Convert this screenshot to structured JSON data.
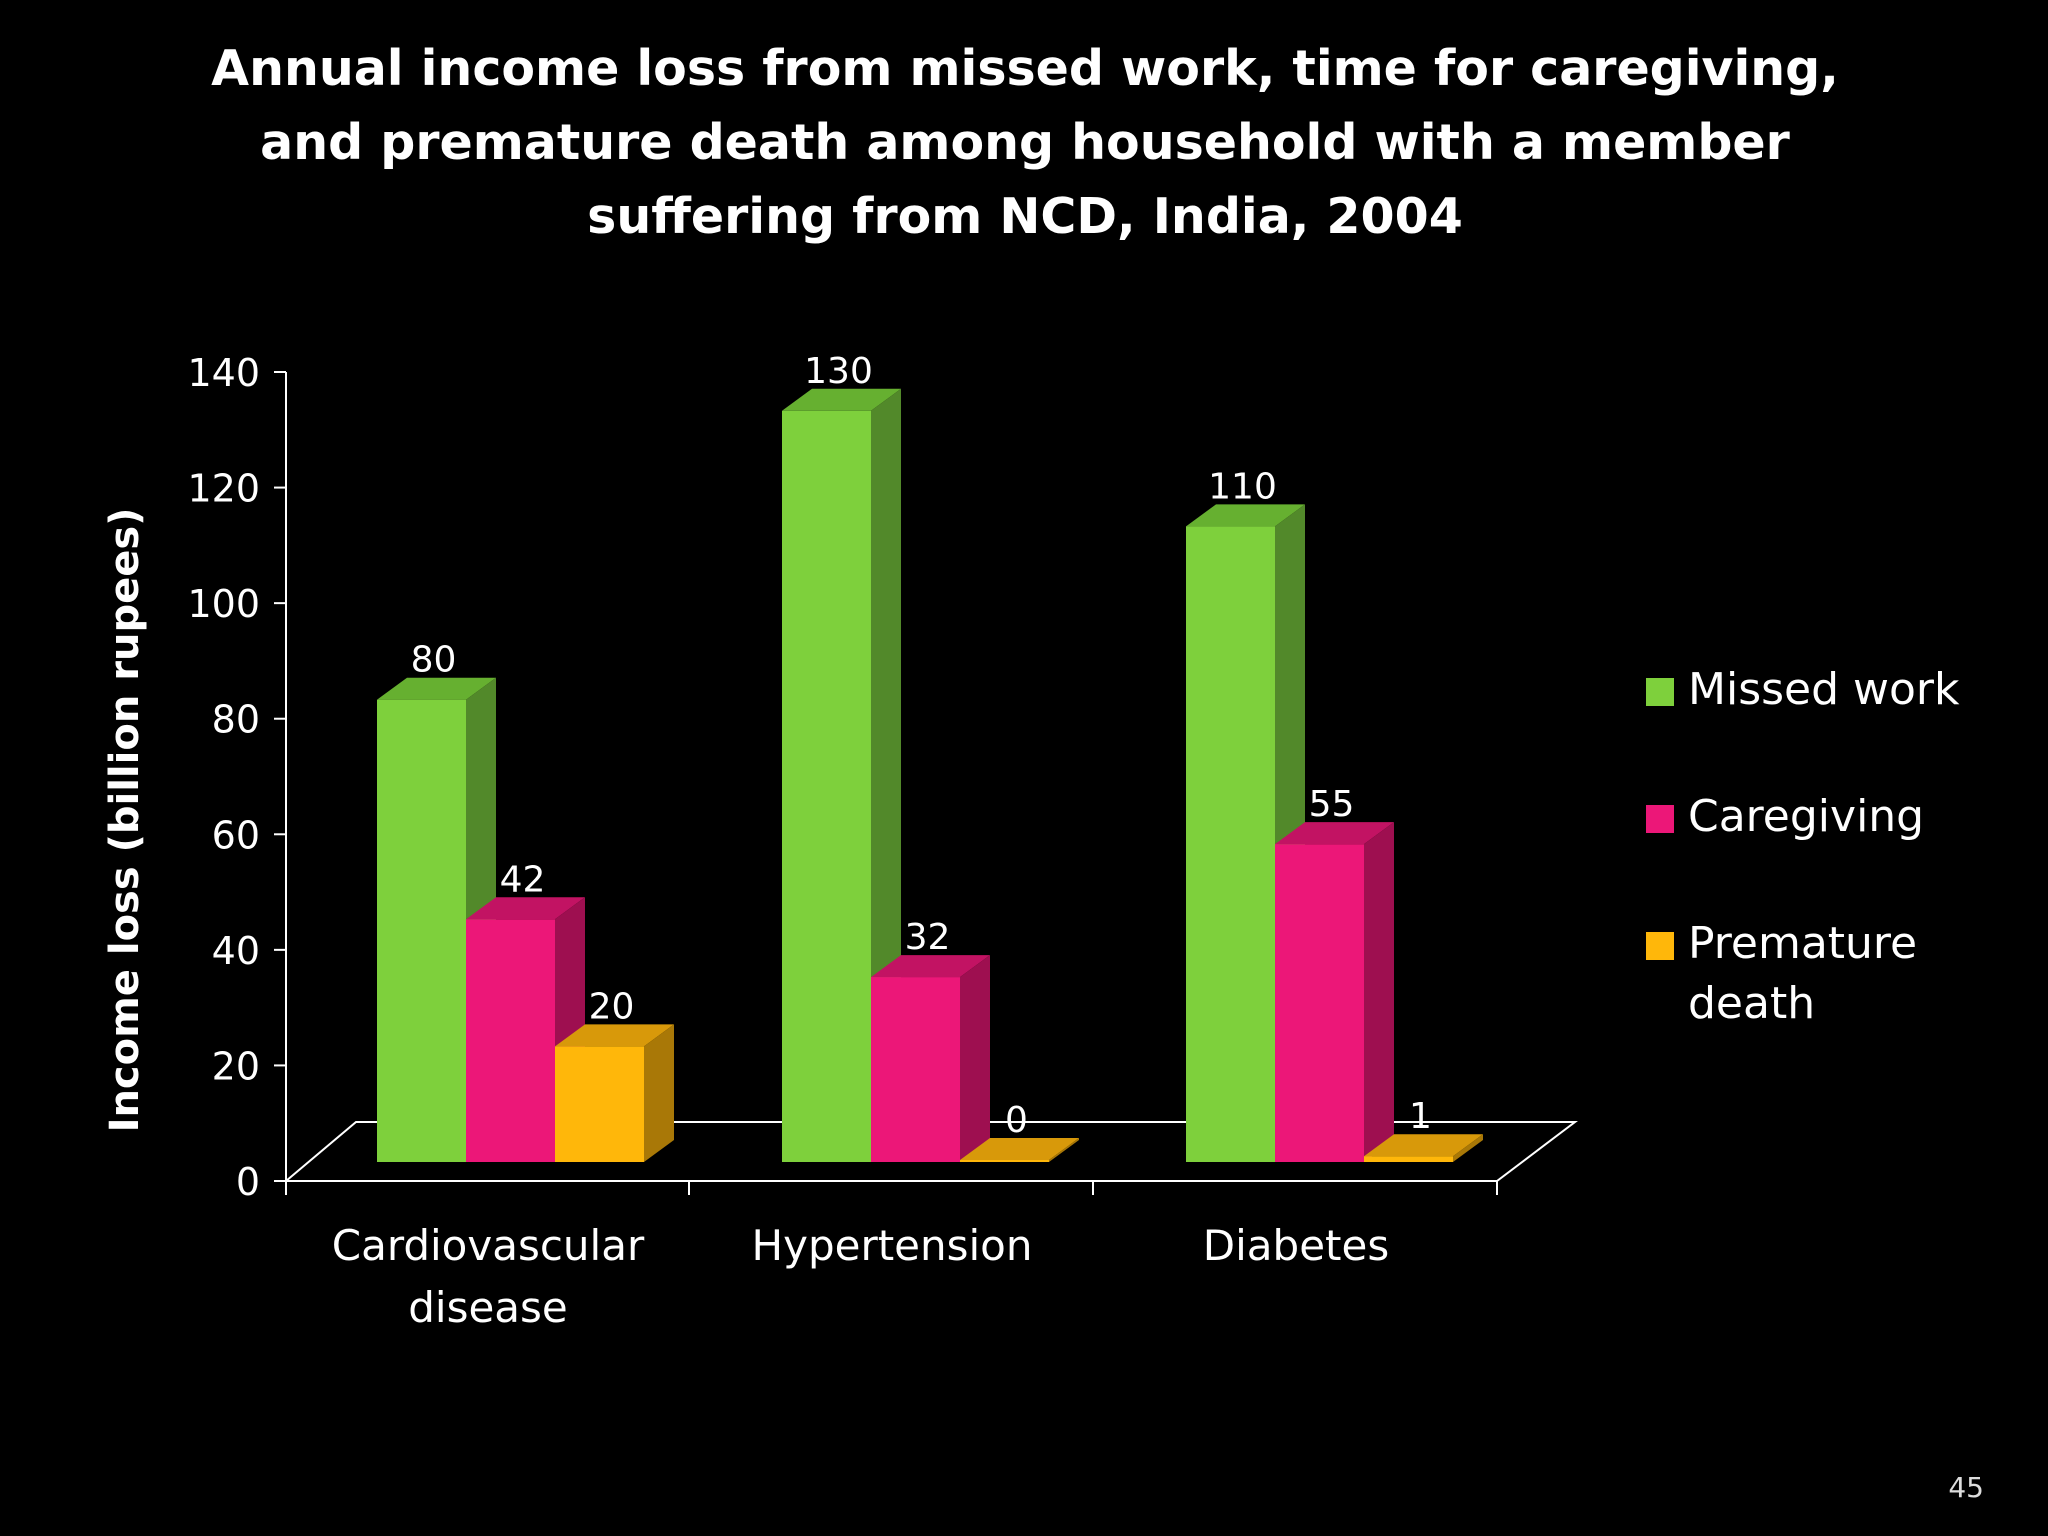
{
  "title_lines": [
    "Annual income loss from missed work, time for caregiving,",
    "and premature death among household with a member",
    "suffering from NCD, India, 2004"
  ],
  "page_number": "45",
  "colors": {
    "background": "#000000",
    "text": "#ffffff",
    "axis": "#ffffff"
  },
  "chart_data": {
    "type": "bar",
    "title": "Annual income loss from missed work, time for caregiving, and premature death among household with a member suffering from NCD, India, 2004",
    "categories": [
      [
        "Cardiovascular",
        "disease"
      ],
      [
        "Hypertension"
      ],
      [
        "Diabetes"
      ]
    ],
    "series": [
      {
        "name": [
          "Missed work"
        ],
        "values": [
          80,
          130,
          110
        ],
        "color": "#7ed03c",
        "side": "#52892a",
        "top": "#66b030"
      },
      {
        "name": [
          "Caregiving"
        ],
        "values": [
          42,
          32,
          55
        ],
        "color": "#ec1778",
        "side": "#9e0f50",
        "top": "#c21363"
      },
      {
        "name": [
          "Premature",
          "death"
        ],
        "values": [
          20,
          0,
          1
        ],
        "color": "#ffb70a",
        "side": "#a97807",
        "top": "#d8990a"
      }
    ],
    "data_labels": [
      [
        "80",
        "130",
        "110"
      ],
      [
        "42",
        "32",
        "55"
      ],
      [
        "20",
        "0",
        "1"
      ]
    ],
    "xlabel": "",
    "ylabel": "Income loss (billion rupees)",
    "ylim": [
      0,
      140
    ],
    "yticks": [
      0,
      20,
      40,
      60,
      80,
      100,
      120,
      140
    ],
    "grid": false,
    "legend_position": "right",
    "style": "3d-bar"
  }
}
